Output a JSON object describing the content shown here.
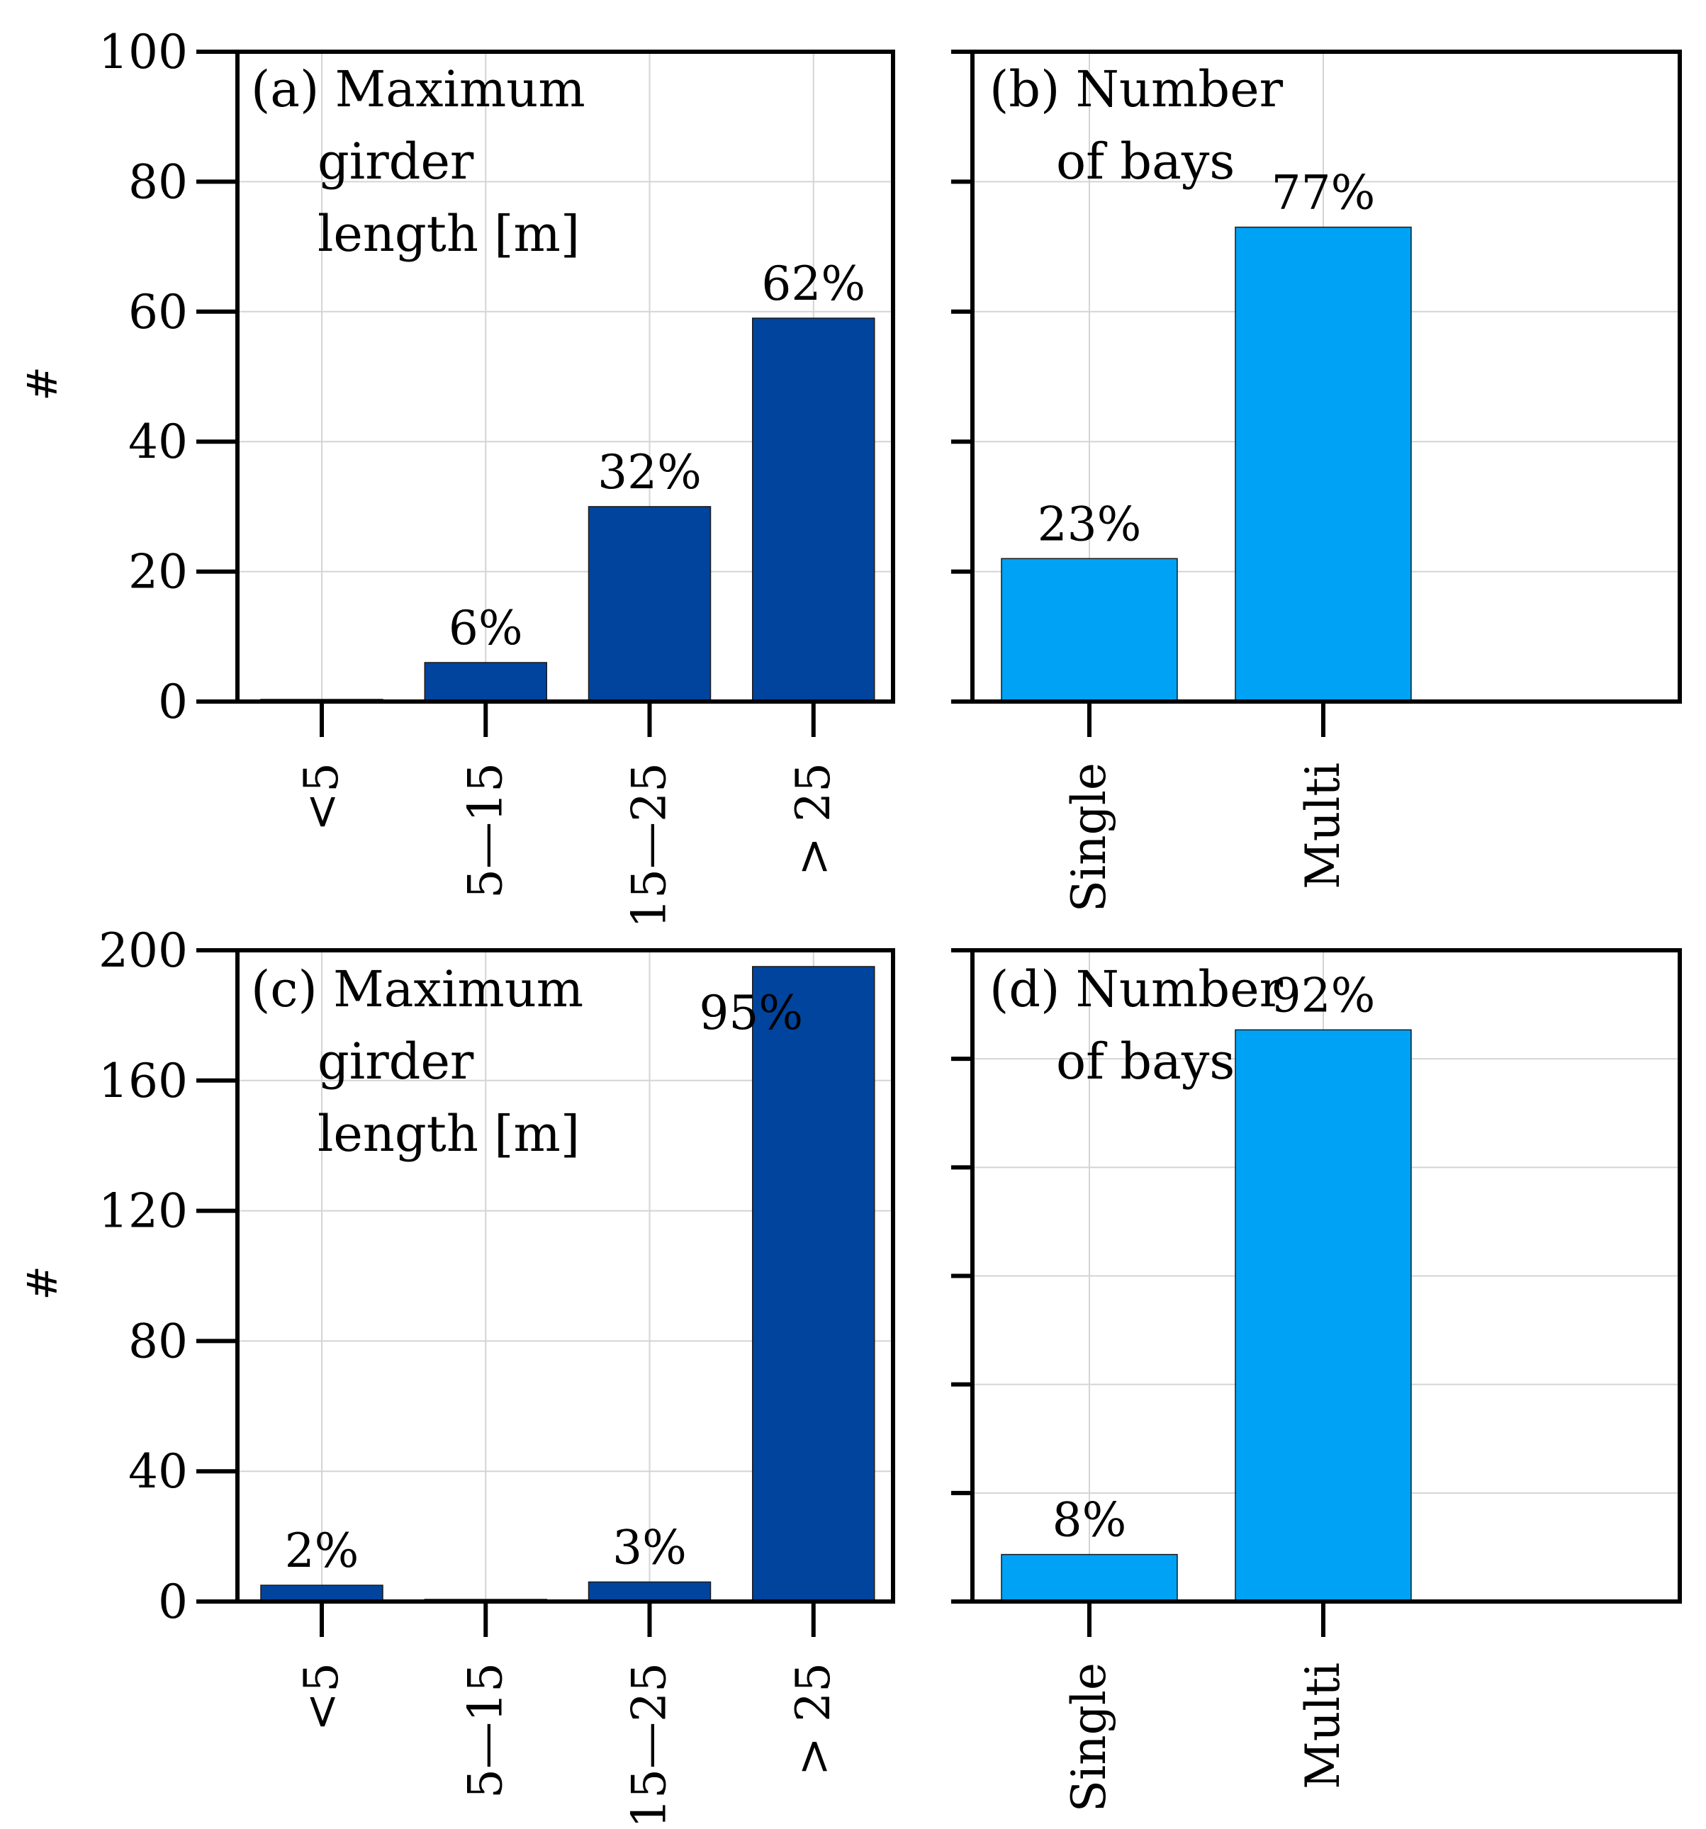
{
  "chart_data": [
    {
      "id": "a",
      "type": "bar",
      "title_lines": [
        "(a) Maximum",
        "girder",
        "length [m]"
      ],
      "ylabel": "#",
      "ylim": [
        0,
        100
      ],
      "yticks": [
        0,
        20,
        40,
        60,
        80,
        100
      ],
      "ytick_labels": [
        "0",
        "20",
        "40",
        "60",
        "80",
        "100"
      ],
      "categories": [
        "<5",
        "5—15",
        "15—25",
        "> 25"
      ],
      "values": [
        0,
        6,
        30,
        59
      ],
      "labels": [
        "",
        "6%",
        "32%",
        "62%"
      ],
      "color": "#00449e",
      "grid": true
    },
    {
      "id": "b",
      "type": "bar",
      "title_lines": [
        "(b) Number",
        "of bays"
      ],
      "ylabel": "",
      "ylim": [
        0,
        100
      ],
      "yticks": [
        0,
        20,
        40,
        60,
        80,
        100
      ],
      "ytick_labels": [],
      "categories": [
        "Single",
        "Multi"
      ],
      "values": [
        22,
        73
      ],
      "labels": [
        "23%",
        "77%"
      ],
      "color": "#00a2f5",
      "grid": true
    },
    {
      "id": "c",
      "type": "bar",
      "title_lines": [
        "(c) Maximum",
        "girder",
        "length [m]"
      ],
      "ylabel": "#",
      "ylim": [
        0,
        200
      ],
      "yticks": [
        0,
        40,
        80,
        120,
        160,
        200
      ],
      "ytick_labels": [
        "0",
        "40",
        "80",
        "120",
        "160",
        "200"
      ],
      "categories": [
        "<5",
        "5—15",
        "15—25",
        "> 25"
      ],
      "values": [
        5,
        0,
        6,
        195
      ],
      "labels": [
        "2%",
        "",
        "3%",
        "95%"
      ],
      "color": "#00449e",
      "grid": true
    },
    {
      "id": "d",
      "type": "bar",
      "title_lines": [
        "(d) Number",
        "of bays"
      ],
      "ylabel": "",
      "ylim": [
        0,
        180
      ],
      "yticks": [
        0,
        30,
        60,
        90,
        120,
        150,
        180
      ],
      "ytick_labels": [],
      "categories": [
        "Single",
        "Multi"
      ],
      "values": [
        13,
        158
      ],
      "labels": [
        "8%",
        "92%"
      ],
      "color": "#00a2f5",
      "grid": true
    }
  ]
}
